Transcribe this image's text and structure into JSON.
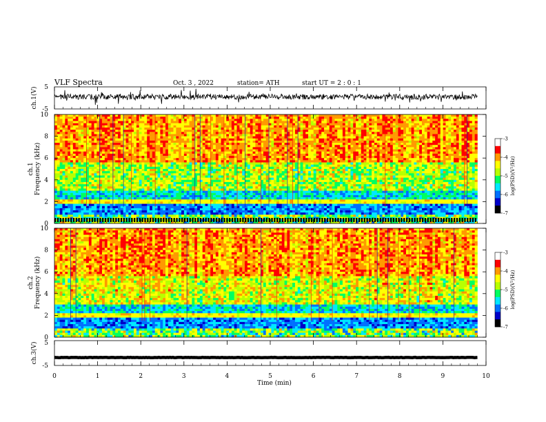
{
  "header": {
    "title": "VLF  Spectra",
    "date": "Oct. 3  , 2022",
    "station": "station= ATH",
    "start": "start  UT  =    2  : 0   : 1"
  },
  "chart_data": [
    {
      "id": "ch1-waveform",
      "type": "line",
      "ylabel": "ch.1(V)",
      "ylim": [
        -5,
        5
      ],
      "yticks": [
        "5",
        "-5"
      ],
      "baseline_v": 0.5,
      "noise_amp_v": 1.2,
      "spike_amp_v": 3.6
    },
    {
      "id": "ch1-spectrogram",
      "type": "heatmap",
      "ylabel_top": "ch.1",
      "ylabel": "Frequency  (kHz)",
      "xlim": [
        0,
        10
      ],
      "ylim": [
        0,
        10
      ],
      "yticks": [
        "0",
        "2",
        "4",
        "6",
        "8",
        "10"
      ],
      "data_time_end_min": 9.8,
      "colorbar": {
        "label": "log(PSD)(V²/Hz)",
        "range": [
          -7,
          -3
        ],
        "ticks": [
          "-3",
          "-4",
          "-5",
          "-6",
          "-7"
        ]
      }
    },
    {
      "id": "ch2-spectrogram",
      "type": "heatmap",
      "ylabel_top": "ch.2",
      "ylabel": "Frequency  (kHz)",
      "xlim": [
        0,
        10
      ],
      "ylim": [
        0,
        10
      ],
      "yticks": [
        "0",
        "2",
        "4",
        "6",
        "8",
        "10"
      ],
      "data_time_end_min": 9.8,
      "colorbar": {
        "label": "log(PSD)(V²/Hz)",
        "range": [
          -7,
          -3
        ],
        "ticks": [
          "-3",
          "-4",
          "-5",
          "-6",
          "-7"
        ]
      }
    },
    {
      "id": "ch3-waveform",
      "type": "line",
      "ylabel": "ch.3(V)",
      "ylim": [
        -5,
        5
      ],
      "yticks": [
        "5",
        "-5"
      ],
      "baseline_v": -1.8,
      "noise_amp_v": 0.25
    }
  ],
  "x_axis": {
    "label": "Time  (min)",
    "ticks": [
      "0",
      "1",
      "2",
      "3",
      "4",
      "5",
      "6",
      "7",
      "8",
      "9",
      "10"
    ]
  },
  "colormap": [
    "#000000",
    "#0000c8",
    "#0070ff",
    "#00e8ff",
    "#00ff60",
    "#b8ff00",
    "#ffff00",
    "#ff9900",
    "#ff0000",
    "#ffffff"
  ]
}
